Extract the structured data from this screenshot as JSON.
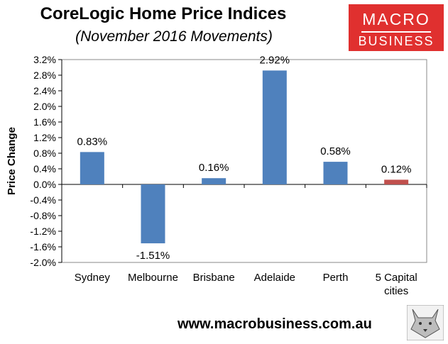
{
  "title": "CoreLogic Home Price Indices",
  "subtitle": "(November 2016 Movements)",
  "logo": {
    "line1": "MACRO",
    "line2": "BUSINESS"
  },
  "footer": "www.macrobusiness.com.au",
  "colors": {
    "bar": "#4f81bd",
    "highlight": "#c0504d",
    "logo_bg": "#e0302f"
  },
  "chart_data": {
    "type": "bar",
    "categories": [
      "Sydney",
      "Melbourne",
      "Brisbane",
      "Adelaide",
      "Perth",
      "5 Capital cities"
    ],
    "category_lines": [
      [
        "Sydney"
      ],
      [
        "Melbourne"
      ],
      [
        "Brisbane"
      ],
      [
        "Adelaide"
      ],
      [
        "Perth"
      ],
      [
        "5 Capital",
        "cities"
      ]
    ],
    "values": [
      0.83,
      -1.51,
      0.16,
      2.92,
      0.58,
      0.12
    ],
    "data_labels": [
      "0.83%",
      "-1.51%",
      "0.16%",
      "2.92%",
      "0.58%",
      "0.12%"
    ],
    "highlight_index": 5,
    "ylabel": "Price Change",
    "xlabel": "",
    "ylim": [
      -2.0,
      3.2
    ],
    "yticks": [
      3.2,
      2.8,
      2.4,
      2.0,
      1.6,
      1.2,
      0.8,
      0.4,
      0.0,
      -0.4,
      -0.8,
      -1.2,
      -1.6,
      -2.0
    ],
    "ytick_labels": [
      "3.2%",
      "2.8%",
      "2.4%",
      "2.0%",
      "1.6%",
      "1.2%",
      "0.8%",
      "0.4%",
      "0.0%",
      "-0.4%",
      "-0.8%",
      "-1.2%",
      "-1.6%",
      "-2.0%"
    ],
    "grid": false,
    "legend": "none"
  }
}
